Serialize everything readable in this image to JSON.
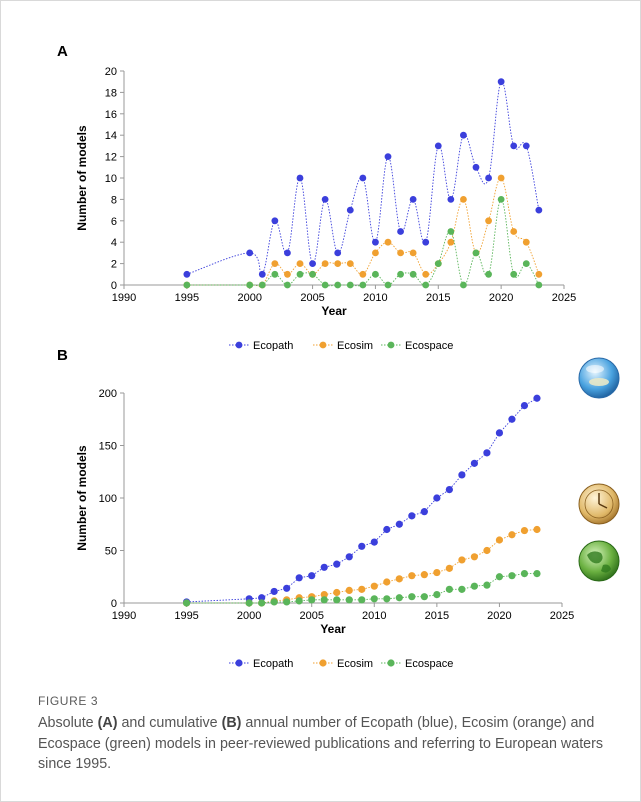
{
  "colors": {
    "ecopath": "#3b3fdc",
    "ecosim": "#f0a030",
    "ecospace": "#5ab55a",
    "axis": "#999999"
  },
  "icons": [
    "ecopath-sphere-icon",
    "ecosim-clock-icon",
    "ecospace-globe-icon"
  ],
  "figure": {
    "label": "FIGURE 3",
    "caption_parts": [
      {
        "text": "Absolute ",
        "bold": false
      },
      {
        "text": "(A)",
        "bold": true
      },
      {
        "text": " and cumulative ",
        "bold": false
      },
      {
        "text": "(B)",
        "bold": true
      },
      {
        "text": " annual number of Ecopath (blue), Ecosim (orange) and Ecospace (green) models in peer-reviewed publications and referring to European waters since 1995.",
        "bold": false
      }
    ]
  },
  "chart_data": [
    {
      "panel": "A",
      "type": "line",
      "xlabel": "Year",
      "ylabel": "Number of models",
      "xlim": [
        1990,
        2025
      ],
      "ylim": [
        0,
        20
      ],
      "xticks": [
        1990,
        1995,
        2000,
        2005,
        2010,
        2015,
        2020,
        2025
      ],
      "yticks": [
        0,
        2,
        4,
        6,
        8,
        10,
        12,
        14,
        16,
        18,
        20
      ],
      "x": [
        1995,
        2000,
        2001,
        2002,
        2003,
        2004,
        2005,
        2006,
        2007,
        2008,
        2009,
        2010,
        2011,
        2012,
        2013,
        2014,
        2015,
        2016,
        2017,
        2018,
        2019,
        2020,
        2021,
        2022,
        2023
      ],
      "series": [
        {
          "name": "Ecopath",
          "values": [
            1,
            3,
            1,
            6,
            3,
            10,
            2,
            8,
            3,
            7,
            10,
            4,
            12,
            5,
            8,
            4,
            13,
            8,
            14,
            11,
            10,
            19,
            13,
            13,
            7
          ]
        },
        {
          "name": "Ecosim",
          "values": [
            0,
            0,
            0,
            2,
            1,
            2,
            1,
            2,
            2,
            2,
            1,
            3,
            4,
            3,
            3,
            1,
            2,
            4,
            8,
            3,
            6,
            10,
            5,
            4,
            1
          ]
        },
        {
          "name": "Ecospace",
          "values": [
            0,
            0,
            0,
            1,
            0,
            1,
            1,
            0,
            0,
            0,
            0,
            1,
            0,
            1,
            1,
            0,
            2,
            5,
            0,
            3,
            1,
            8,
            1,
            2,
            0
          ]
        }
      ],
      "legend_position": "bottom",
      "grid": false
    },
    {
      "panel": "B",
      "type": "line",
      "xlabel": "Year",
      "ylabel": "Number of models",
      "xlim": [
        1990,
        2025
      ],
      "ylim": [
        0,
        200
      ],
      "xticks": [
        1990,
        1995,
        2000,
        2005,
        2010,
        2015,
        2020,
        2025
      ],
      "yticks": [
        0,
        50,
        100,
        150,
        200
      ],
      "x": [
        1995,
        2000,
        2001,
        2002,
        2003,
        2004,
        2005,
        2006,
        2007,
        2008,
        2009,
        2010,
        2011,
        2012,
        2013,
        2014,
        2015,
        2016,
        2017,
        2018,
        2019,
        2020,
        2021,
        2022,
        2023
      ],
      "series": [
        {
          "name": "Ecopath",
          "values": [
            1,
            4,
            5,
            11,
            14,
            24,
            26,
            34,
            37,
            44,
            54,
            58,
            70,
            75,
            83,
            87,
            100,
            108,
            122,
            133,
            143,
            162,
            175,
            188,
            195
          ]
        },
        {
          "name": "Ecosim",
          "values": [
            0,
            0,
            0,
            2,
            3,
            5,
            6,
            8,
            10,
            12,
            13,
            16,
            20,
            23,
            26,
            27,
            29,
            33,
            41,
            44,
            50,
            60,
            65,
            69,
            70
          ]
        },
        {
          "name": "Ecospace",
          "values": [
            0,
            0,
            0,
            1,
            1,
            2,
            3,
            3,
            3,
            3,
            3,
            4,
            4,
            5,
            6,
            6,
            8,
            13,
            13,
            16,
            17,
            25,
            26,
            28,
            28
          ]
        }
      ],
      "legend_position": "bottom",
      "grid": false
    }
  ]
}
